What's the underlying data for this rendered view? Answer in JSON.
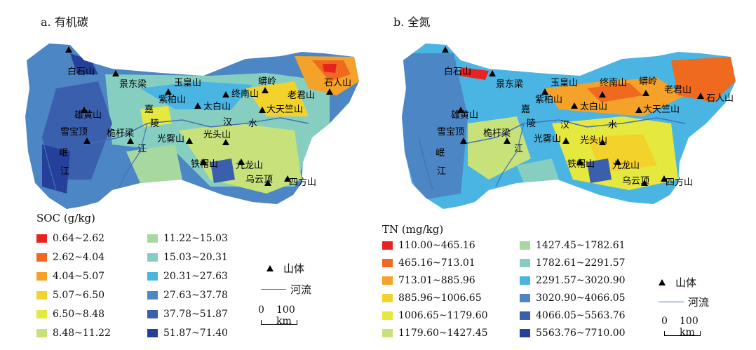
{
  "panels": [
    {
      "title": "a. 有机碳",
      "legend_title": "SOC (g/kg)",
      "classes": [
        {
          "label": "0.64~2.62",
          "color": "#e8231f"
        },
        {
          "label": "2.62~4.04",
          "color": "#ef6a1e"
        },
        {
          "label": "4.04~5.07",
          "color": "#f5a22a"
        },
        {
          "label": "5.07~6.50",
          "color": "#f3d22c"
        },
        {
          "label": "6.50~8.48",
          "color": "#e5e93f"
        },
        {
          "label": "8.48~11.22",
          "color": "#c7e27a"
        },
        {
          "label": "11.22~15.03",
          "color": "#a7d8a0"
        },
        {
          "label": "15.03~20.31",
          "color": "#86cfc0"
        },
        {
          "label": "20.31~27.63",
          "color": "#4ab4e3"
        },
        {
          "label": "27.63~37.78",
          "color": "#4d86c4"
        },
        {
          "label": "37.78~51.87",
          "color": "#3a5fad"
        },
        {
          "label": "51.87~71.40",
          "color": "#24409a"
        }
      ]
    },
    {
      "title": "b. 全氮",
      "legend_title": "TN (mg/kg)",
      "classes": [
        {
          "label": "110.00~465.16",
          "color": "#e8231f"
        },
        {
          "label": "465.16~713.01",
          "color": "#ef6a1e"
        },
        {
          "label": "713.01~885.96",
          "color": "#f5a22a"
        },
        {
          "label": "885.96~1006.65",
          "color": "#f3d22c"
        },
        {
          "label": "1006.65~1179.60",
          "color": "#e5e93f"
        },
        {
          "label": "1179.60~1427.45",
          "color": "#c7e27a"
        },
        {
          "label": "1427.45~1782.61",
          "color": "#a7d8a0"
        },
        {
          "label": "1782.61~2291.57",
          "color": "#86cfc0"
        },
        {
          "label": "2291.57~3020.90",
          "color": "#4ab4e3"
        },
        {
          "label": "3020.90~4066.05",
          "color": "#4d86c4"
        },
        {
          "label": "4066.05~5563.76",
          "color": "#3a5fad"
        },
        {
          "label": "5563.76~7710.00",
          "color": "#24409a"
        }
      ]
    }
  ],
  "symbols": {
    "mountain": "山体",
    "river": "河流",
    "mountain_icon": "triangle-icon"
  },
  "scale": {
    "zero": "0",
    "distance": "100 km"
  },
  "place_labels": {
    "baishishan": "白石山",
    "jingdongliang": "景东梁",
    "yuhuangshan": "玉皇山",
    "zibaishan": "紫柏山",
    "zhongnanshan": "终南山",
    "manglin": "蟒岭",
    "laojunshan": "老君山",
    "shirenshan": "石人山",
    "taibaishan": "太白山",
    "xionghuangshan": "雄黄山",
    "datiantangshan": "大天竺山",
    "xuebaoding": "雪宝顶",
    "huanganliang": "桅杆梁",
    "guangwushan": "光雾山",
    "guangtoushan": "光头山",
    "tiemaoshan": "铁帽山",
    "jiulongshan": "九龙山",
    "wuyunding": "乌云顶",
    "sifangshan": "四方山",
    "jialing": [
      "嘉",
      "陵",
      "江"
    ],
    "minjiang": [
      "岷",
      "江"
    ],
    "hanshui": [
      "汉",
      "水"
    ]
  }
}
